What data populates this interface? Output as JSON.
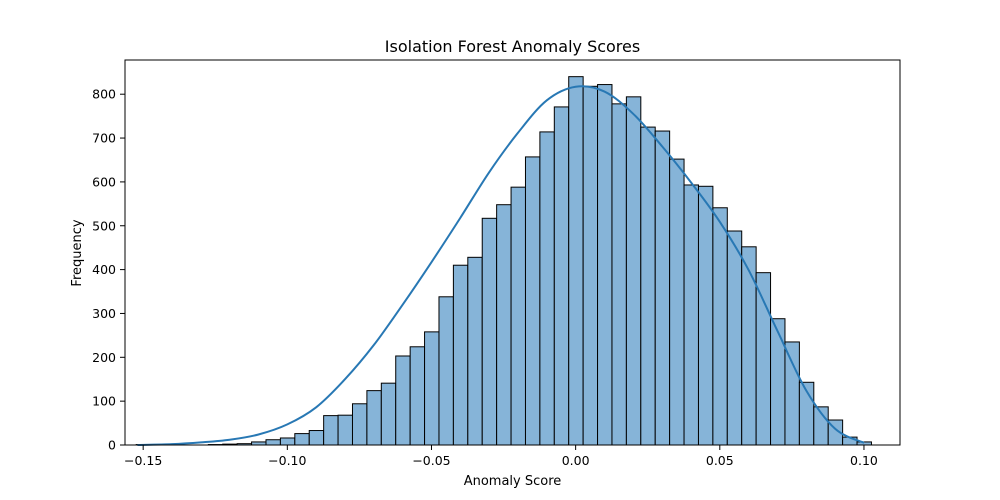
{
  "chart_data": {
    "type": "bar",
    "title": "Isolation Forest Anomaly Scores",
    "xlabel": "Anomaly Score",
    "ylabel": "Frequency",
    "xlim": [
      -0.1563,
      0.1125
    ],
    "ylim": [
      0,
      878
    ],
    "x_ticks": [
      -0.15,
      -0.1,
      -0.05,
      0.0,
      0.05,
      0.1
    ],
    "x_tick_labels": [
      "−0.15",
      "−0.10",
      "−0.05",
      "0.00",
      "0.05",
      "0.10"
    ],
    "y_ticks": [
      0,
      100,
      200,
      300,
      400,
      500,
      600,
      700,
      800
    ],
    "y_tick_labels": [
      "0",
      "100",
      "200",
      "300",
      "400",
      "500",
      "600",
      "700",
      "800"
    ],
    "bin_start": -0.1524,
    "bin_width": 0.005,
    "counts": [
      1,
      0,
      0,
      0,
      0,
      1,
      2,
      3,
      7,
      12,
      16,
      26,
      33,
      67,
      68,
      94,
      124,
      141,
      203,
      224,
      258,
      338,
      410,
      428,
      517,
      548,
      588,
      657,
      714,
      771,
      840,
      818,
      822,
      778,
      794,
      725,
      716,
      652,
      593,
      590,
      541,
      488,
      452,
      393,
      288,
      235,
      143,
      87,
      57,
      18,
      7
    ],
    "series": [
      {
        "name": "",
        "kind": "kde",
        "x": [
          -0.152,
          -0.14,
          -0.13,
          -0.12,
          -0.11,
          -0.1,
          -0.09,
          -0.08,
          -0.07,
          -0.06,
          -0.05,
          -0.04,
          -0.03,
          -0.02,
          -0.01,
          0.0,
          0.01,
          0.02,
          0.03,
          0.04,
          0.05,
          0.06,
          0.07,
          0.08,
          0.09,
          0.1
        ],
        "y": [
          0,
          2,
          6,
          12,
          24,
          47,
          86,
          150,
          228,
          320,
          417,
          518,
          622,
          712,
          786,
          817,
          806,
          755,
          681,
          599,
          509,
          399,
          260,
          124,
          37,
          5
        ]
      }
    ],
    "colors": {
      "bar_fill": "#86b4d8",
      "bar_edge": "#000000",
      "kde_line": "#2878b4"
    },
    "grid": false,
    "legend": "none"
  }
}
